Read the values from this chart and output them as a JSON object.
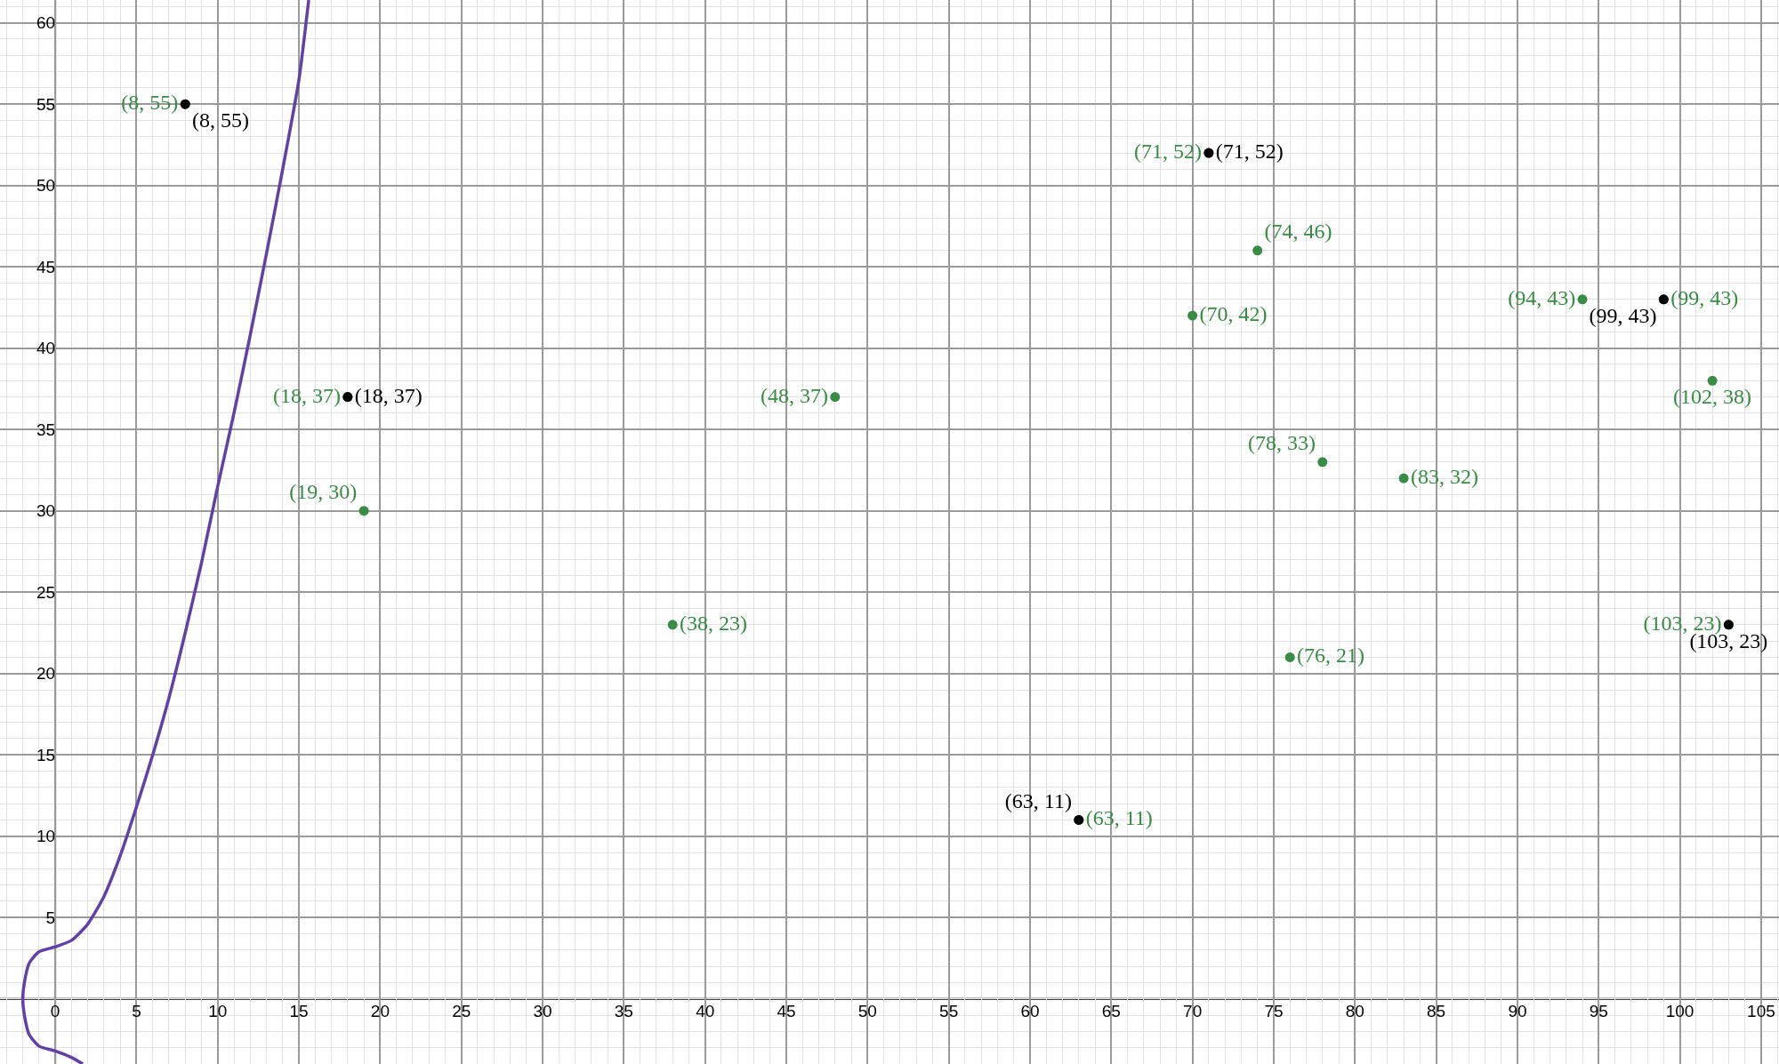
{
  "chart_data": {
    "type": "scatter",
    "xlim": [
      -3.4,
      106.1
    ],
    "ylim": [
      -4,
      61.4
    ],
    "xticks": [
      0,
      5,
      10,
      15,
      20,
      25,
      30,
      35,
      40,
      45,
      50,
      55,
      60,
      65,
      70,
      75,
      80,
      85,
      90,
      95,
      100,
      105
    ],
    "yticks": [
      5,
      10,
      15,
      20,
      25,
      30,
      35,
      40,
      45,
      50,
      55,
      60
    ],
    "grid": true,
    "legend": false,
    "marker": "circle",
    "series": [
      {
        "type": "line",
        "marker": "none",
        "color": "#6042a6",
        "line_style": "solid",
        "x": [
          1.7,
          1,
          0,
          -1,
          -1.6,
          -1.9,
          -2,
          -1.9,
          -1.6,
          -1,
          0,
          1,
          2,
          3,
          4,
          5,
          6,
          7,
          8,
          9,
          10,
          11,
          12,
          13,
          14,
          15,
          15.6
        ],
        "values": [
          -4,
          -3.6,
          -3.2,
          -2.9,
          -2.2,
          -1,
          0,
          1,
          2.2,
          2.9,
          3.2,
          3.6,
          4.6,
          6.3,
          8.8,
          11.8,
          15,
          18.5,
          22.5,
          26.8,
          31.5,
          36,
          40.8,
          45.8,
          51,
          56.5,
          61.4
        ]
      },
      {
        "color": "#388c46",
        "x": [
          74,
          70,
          94,
          48,
          102,
          78,
          83,
          19,
          38,
          76,
          8,
          18,
          71,
          63,
          99,
          103
        ],
        "values": [
          46,
          42,
          43,
          37,
          38,
          33,
          32,
          30,
          23,
          21,
          55,
          37,
          52,
          11,
          43,
          23
        ],
        "value_labels": [
          "(74, 46)",
          "(70, 42)",
          "(94, 43)",
          "(48, 37)",
          "(102, 38)",
          "(78, 33)",
          "(83, 32)",
          "(19, 30)",
          "(38, 23)",
          "(76, 21)",
          "(8, 55)",
          "(18, 37)",
          "(71, 52)",
          "(63, 11)",
          "(99, 43)",
          "(103, 23)"
        ]
      },
      {
        "color": "#000000",
        "x": [
          8,
          71,
          18,
          99,
          103,
          63
        ],
        "values": [
          55,
          52,
          37,
          43,
          23,
          11
        ],
        "value_labels": [
          "(8, 55)",
          "(71, 52)",
          "(18, 37)",
          "(99, 43)",
          "(103, 23)",
          "(63, 11)"
        ]
      }
    ]
  }
}
